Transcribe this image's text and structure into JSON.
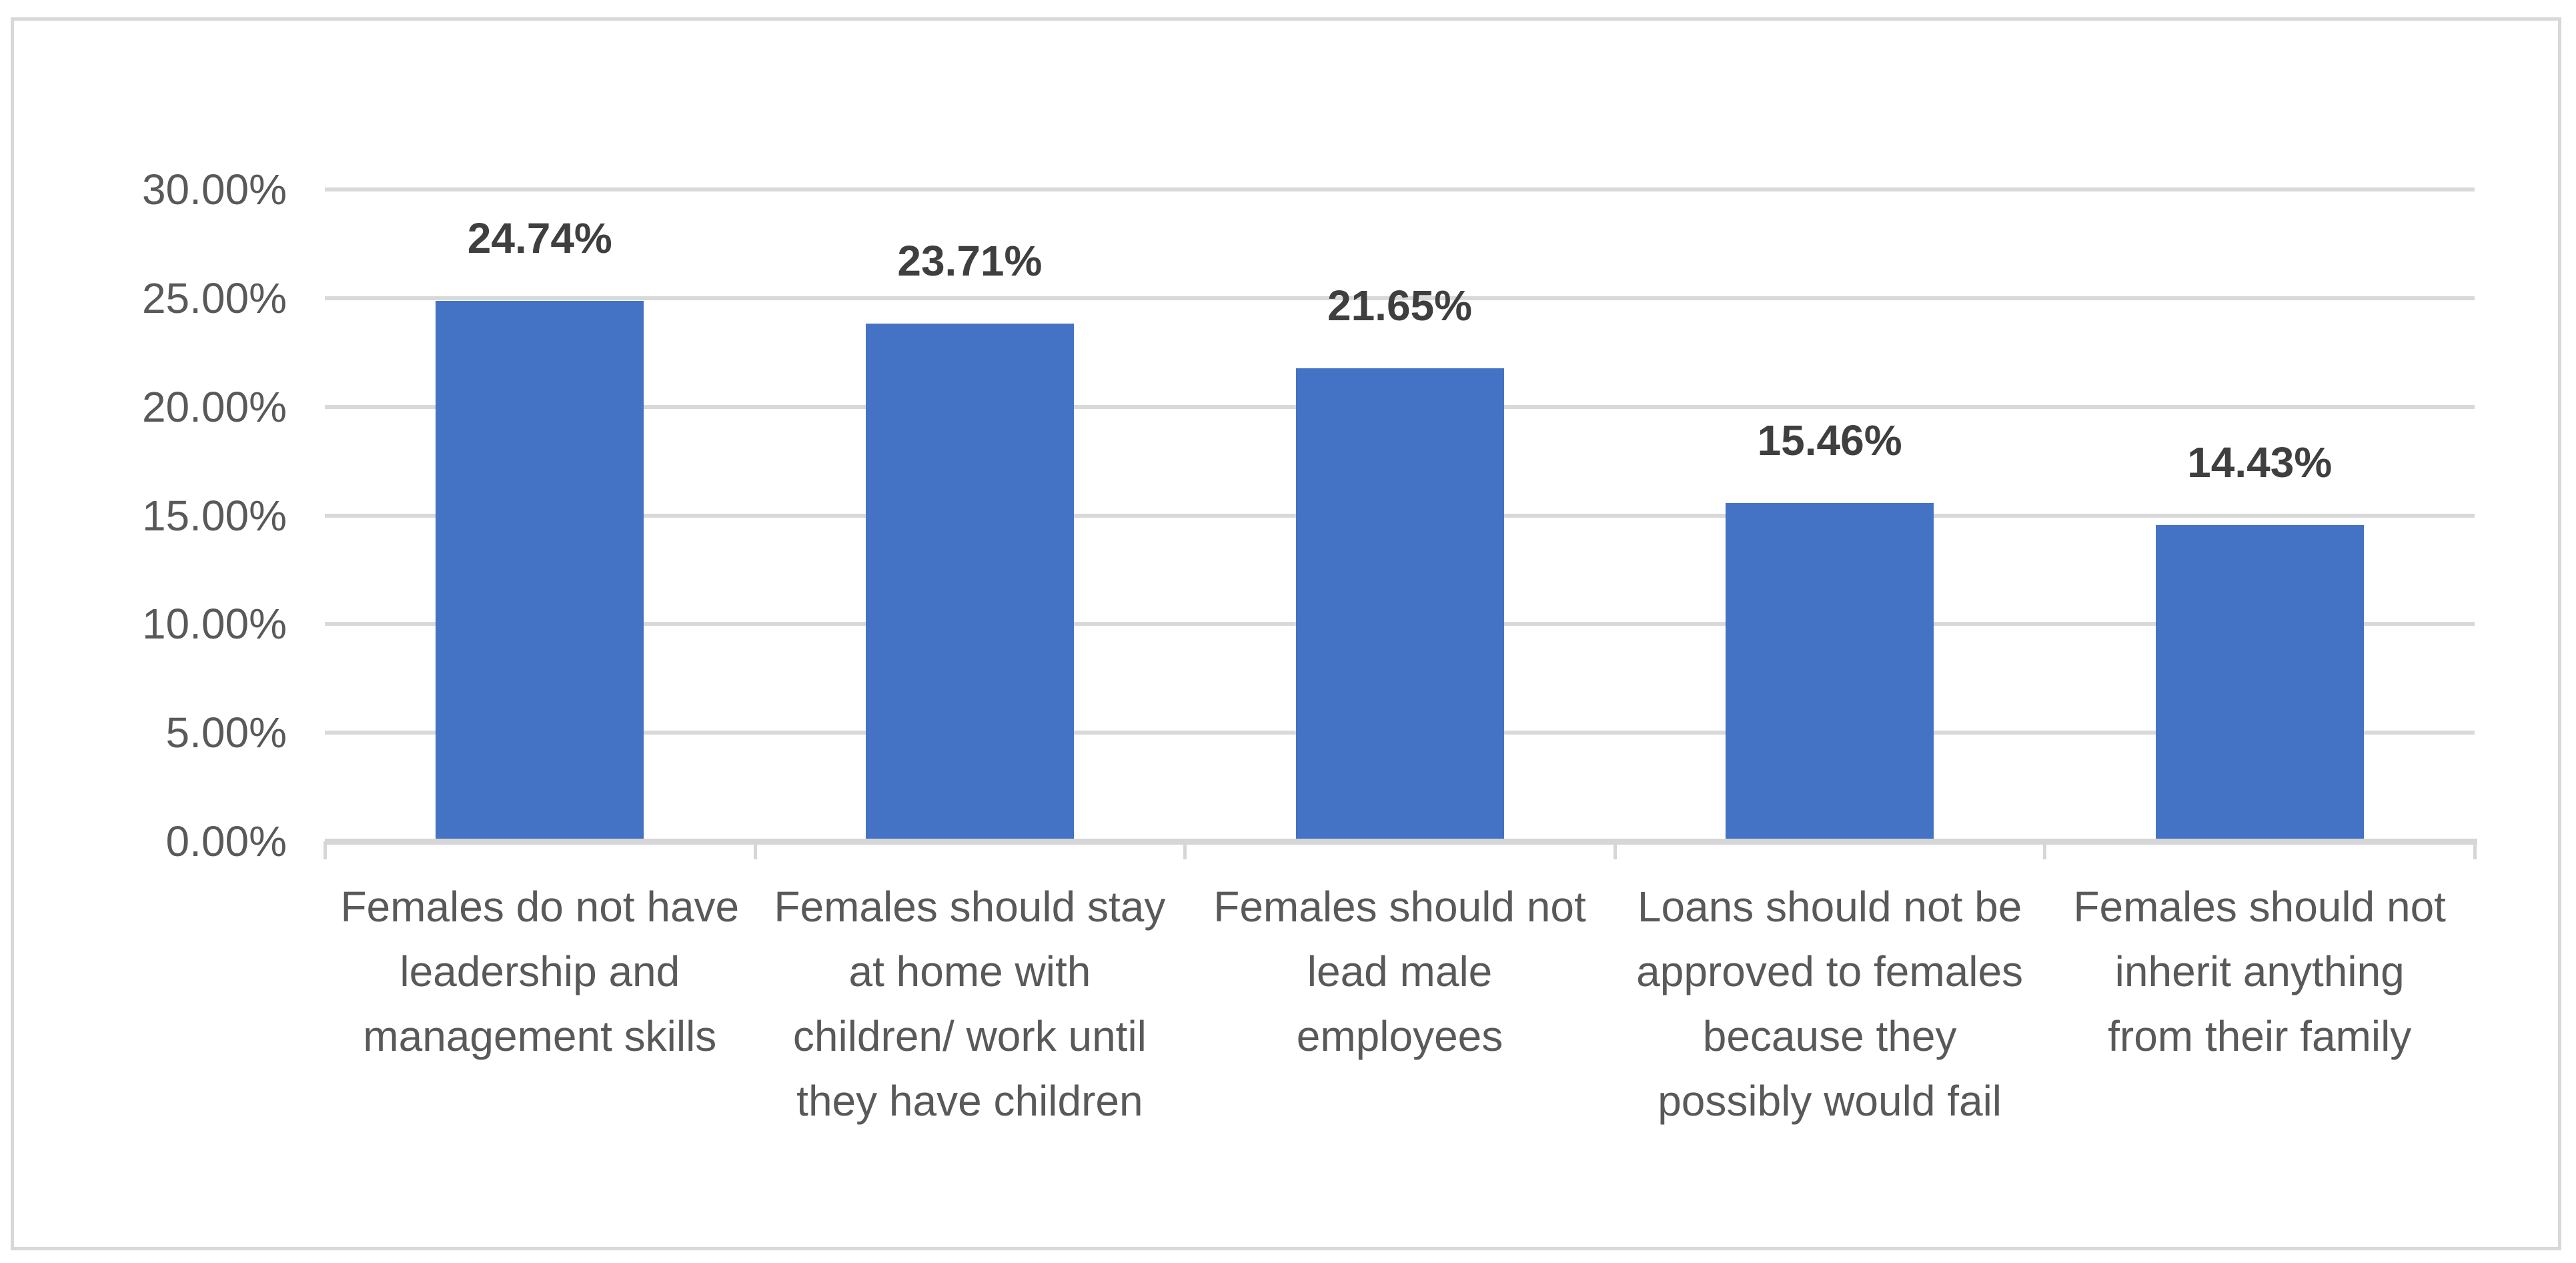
{
  "chart_data": {
    "type": "bar",
    "title": "",
    "categories": [
      "Females do not have\nleadership and\nmanagement skills",
      "Females should stay\nat home with\nchildren/ work until\nthey have children",
      "Females should not\nlead male\nemployees",
      "Loans should not be\napproved to females\nbecause they\npossibly would fail",
      "Females should not\ninherit anything\nfrom their family"
    ],
    "values": [
      24.74,
      23.71,
      21.65,
      15.46,
      14.43
    ],
    "data_labels": [
      "24.74%",
      "23.71%",
      "21.65%",
      "15.46%",
      "14.43%"
    ],
    "xlabel": "",
    "ylabel": "",
    "ylim": [
      0,
      30
    ],
    "y_tick_step": 5,
    "y_tick_labels": [
      "0.00%",
      "5.00%",
      "10.00%",
      "15.00%",
      "20.00%",
      "25.00%",
      "30.00%"
    ],
    "grid": true,
    "legend_position": "none",
    "colors": {
      "bar_fill": "#4472C4",
      "gridline": "#D9D9D9",
      "axis_line": "#D6D6D6",
      "chart_border": "#D8D8D8",
      "axis_text": "#595959",
      "data_label_text": "#3F3F3F",
      "background": "#FFFFFF"
    }
  }
}
